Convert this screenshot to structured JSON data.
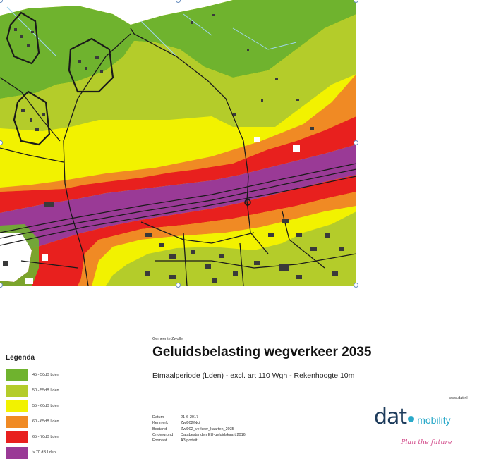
{
  "colors": {
    "c45": "#6fb32e",
    "c50": "#b4cc2a",
    "c55": "#f2f200",
    "c60": "#f08a24",
    "c65": "#e8201e",
    "c70": "#9a3a96",
    "white": "#ffffff",
    "road": "#1a1a1a",
    "building": "#3a3a3a",
    "water": "#9fd6ee"
  },
  "legend": {
    "title": "Legenda",
    "items": [
      {
        "label": "45 - 50dB Lden",
        "color": "#6fb32e"
      },
      {
        "label": "50 - 55dB Lden",
        "color": "#b4cc2a"
      },
      {
        "label": "55 - 60dB Lden",
        "color": "#f2f200"
      },
      {
        "label": "60 - 65dB Lden",
        "color": "#f08a24"
      },
      {
        "label": "65 - 70dB Lden",
        "color": "#e8201e"
      },
      {
        "label": "> 70 dB Lden",
        "color": "#9a3a96"
      }
    ]
  },
  "header": {
    "municipality": "Gemeente Zwolle",
    "title": "Geluidsbelasting wegverkeer 2035",
    "subtitle": "Etmaalperiode (Lden) - excl. art 110 Wgh - Rekenhoogte 10m"
  },
  "meta": [
    {
      "key": "Datum",
      "value": "21-6-2017"
    },
    {
      "key": "Kenmerk",
      "value": "Zwl002/Ncj"
    },
    {
      "key": "Bestand",
      "value": "Zwl002_verkeer_kaarten_2035"
    },
    {
      "key": "Ondergrond",
      "value": "Databestanden EU-geluidskaart 2016"
    },
    {
      "key": "Formaat",
      "value": "A3 portait"
    }
  ],
  "website": "www.dat.nl",
  "logo": {
    "dat": "dat",
    "mobility": "mobility",
    "tagline": "Plan the future"
  }
}
